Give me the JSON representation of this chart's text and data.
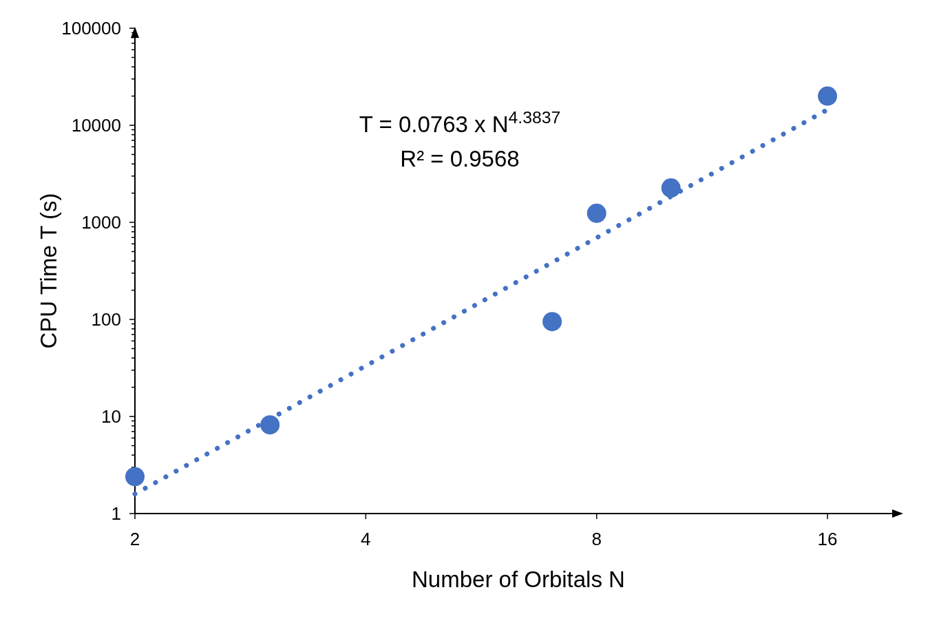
{
  "chart_data": {
    "type": "scatter",
    "xlabel": "Number of Orbitals N",
    "ylabel": "CPU Time T (s)",
    "log": "xy",
    "xlim": [
      2,
      20
    ],
    "ylim": [
      1,
      100000
    ],
    "xticks": [
      2,
      4,
      8,
      16
    ],
    "yticks": [
      1,
      {
        "value": 2,
        "label": null
      },
      {
        "value": 3,
        "label": null
      },
      {
        "value": 4,
        "label": null
      },
      {
        "value": 5,
        "label": null
      },
      {
        "value": 6,
        "label": null
      },
      {
        "value": 7,
        "label": null
      },
      {
        "value": 8,
        "label": null
      },
      {
        "value": 9,
        "label": null
      },
      10,
      {
        "value": 20,
        "label": null
      },
      {
        "value": 30,
        "label": null
      },
      {
        "value": 40,
        "label": null
      },
      {
        "value": 50,
        "label": null
      },
      {
        "value": 60,
        "label": null
      },
      {
        "value": 70,
        "label": null
      },
      {
        "value": 80,
        "label": null
      },
      {
        "value": 90,
        "label": null
      },
      100,
      {
        "value": 200,
        "label": null
      },
      {
        "value": 300,
        "label": null
      },
      {
        "value": 400,
        "label": null
      },
      {
        "value": 500,
        "label": null
      },
      {
        "value": 600,
        "label": null
      },
      {
        "value": 700,
        "label": null
      },
      {
        "value": 800,
        "label": null
      },
      {
        "value": 900,
        "label": null
      },
      1000,
      {
        "value": 2000,
        "label": null
      },
      {
        "value": 3000,
        "label": null
      },
      {
        "value": 4000,
        "label": null
      },
      {
        "value": 5000,
        "label": null
      },
      {
        "value": 6000,
        "label": null
      },
      {
        "value": 7000,
        "label": null
      },
      {
        "value": 8000,
        "label": null
      },
      {
        "value": 9000,
        "label": null
      },
      10000,
      {
        "value": 20000,
        "label": null
      },
      {
        "value": 30000,
        "label": null
      },
      {
        "value": 40000,
        "label": null
      },
      {
        "value": 50000,
        "label": null
      },
      {
        "value": 60000,
        "label": null
      },
      {
        "value": 70000,
        "label": null
      },
      {
        "value": 80000,
        "label": null
      },
      {
        "value": 90000,
        "label": null
      },
      100000
    ],
    "grid": false,
    "marker": "circle",
    "series": [
      {
        "color": "#4472c4",
        "x": [
          2,
          3,
          7,
          8,
          10,
          16
        ],
        "values": [
          2.4,
          8.2,
          95,
          1240,
          2260,
          20000
        ]
      },
      {
        "type": "line",
        "color": "#4472c4",
        "line_style": "dotted",
        "marker": "none",
        "x": [
          2,
          16
        ],
        "values": [
          1.59,
          14500
        ]
      }
    ],
    "annotations": [
      "T = 0.0763 x N$^{4.3837}$",
      "R² = 0.9568"
    ]
  }
}
